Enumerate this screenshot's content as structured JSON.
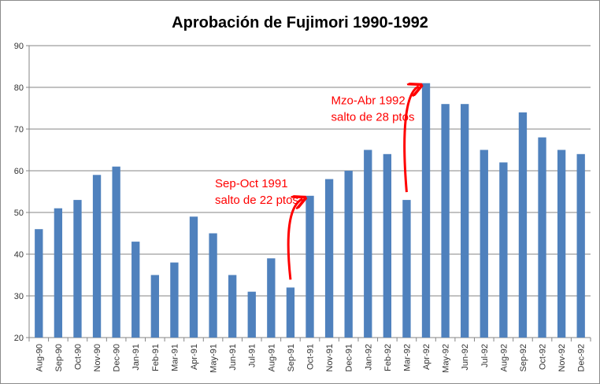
{
  "chart_data": {
    "type": "bar",
    "title": "Aprobación de Fujimori 1990-1992",
    "xlabel": "",
    "ylabel": "",
    "ylim": [
      20,
      90
    ],
    "yticks": [
      20,
      30,
      40,
      50,
      60,
      70,
      80,
      90
    ],
    "grid": true,
    "legend": "none",
    "bar_color": "#4f81bd",
    "categories": [
      "Aug-90",
      "Sep-90",
      "Oct-90",
      "Nov-90",
      "Dec-90",
      "Jan-91",
      "Feb-91",
      "Mar-91",
      "Apr-91",
      "May-91",
      "Jun-91",
      "Jul-91",
      "Aug-91",
      "Sep-91",
      "Oct-91",
      "Nov-91",
      "Dec-91",
      "Jan-92",
      "Feb-92",
      "Mar-92",
      "Apr-92",
      "May-92",
      "Jun-92",
      "Jul-92",
      "Aug-92",
      "Sep-92",
      "Oct-92",
      "Nov-92",
      "Dec-92"
    ],
    "values": [
      46,
      51,
      53,
      59,
      61,
      43,
      35,
      38,
      49,
      45,
      35,
      31,
      39,
      32,
      54,
      58,
      60,
      65,
      64,
      53,
      81,
      76,
      76,
      65,
      62,
      74,
      68,
      65,
      64
    ],
    "annotations": [
      {
        "lines": [
          "Sep-Oct 1991",
          "salto de 22 ptos"
        ],
        "color": "#ff0000",
        "from_category": "Sep-91",
        "to_category": "Oct-91"
      },
      {
        "lines": [
          "Mzo-Abr 1992",
          "salto de 28 ptos"
        ],
        "color": "#ff0000",
        "from_category": "Mar-92",
        "to_category": "Apr-92"
      }
    ]
  }
}
